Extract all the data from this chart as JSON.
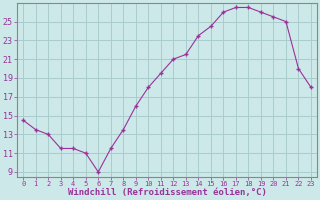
{
  "x": [
    0,
    1,
    2,
    3,
    4,
    5,
    6,
    7,
    8,
    9,
    10,
    11,
    12,
    13,
    14,
    15,
    16,
    17,
    18,
    19,
    20,
    21,
    22,
    23
  ],
  "y": [
    14.5,
    13.5,
    13.0,
    11.5,
    11.5,
    11.0,
    9.0,
    11.5,
    13.5,
    16.0,
    18.0,
    19.5,
    21.0,
    21.5,
    23.5,
    24.5,
    26.0,
    26.5,
    26.5,
    26.0,
    25.5,
    25.0,
    20.0,
    18.0
  ],
  "xlim": [
    -0.5,
    23.5
  ],
  "ylim": [
    8.5,
    27
  ],
  "yticks": [
    9,
    11,
    13,
    15,
    17,
    19,
    21,
    23,
    25
  ],
  "xticks": [
    0,
    1,
    2,
    3,
    4,
    5,
    6,
    7,
    8,
    9,
    10,
    11,
    12,
    13,
    14,
    15,
    16,
    17,
    18,
    19,
    20,
    21,
    22,
    23
  ],
  "xlabel": "Windchill (Refroidissement éolien,°C)",
  "line_color": "#993399",
  "marker": "+",
  "bg_color": "#cce8e8",
  "grid_color": "#aacccc",
  "tick_color": "#993399",
  "label_color": "#993399",
  "xlabel_fontsize": 6.5,
  "xtick_fontsize": 5.0,
  "ytick_fontsize": 6.0
}
